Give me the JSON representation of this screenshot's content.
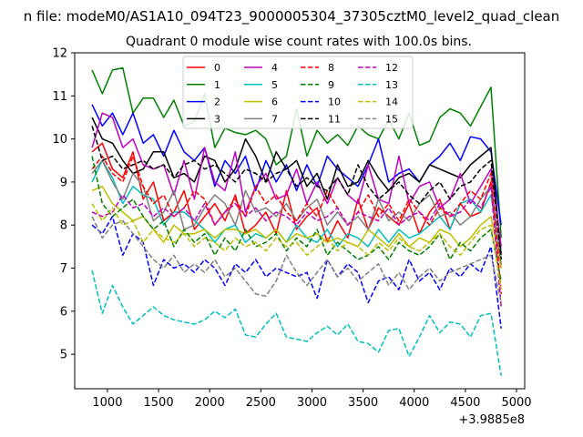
{
  "chart_data": {
    "type": "line",
    "suptitle": "n file: modeM0/AS1A10_094T23_9000005304_37305cztM0_level2_quad_clean",
    "title": "Quadrant 0 module wise count rates with 100.0s bins.",
    "xlabel": "",
    "ylabel": "",
    "offset_text": "+3.9885e8",
    "xlim": [
      680,
      5080
    ],
    "ylim": [
      4.2,
      12
    ],
    "xticks": [
      1000,
      1500,
      2000,
      2500,
      3000,
      3500,
      4000,
      4500,
      5000
    ],
    "yticks": [
      5,
      6,
      7,
      8,
      9,
      10,
      11,
      12
    ],
    "grid": false,
    "legend_position": "top-center",
    "legend_columns": 4,
    "x": [
      850,
      950,
      1050,
      1150,
      1250,
      1350,
      1450,
      1550,
      1650,
      1750,
      1850,
      1950,
      2050,
      2150,
      2250,
      2350,
      2450,
      2550,
      2650,
      2750,
      2850,
      2950,
      3050,
      3150,
      3250,
      3350,
      3450,
      3550,
      3650,
      3750,
      3850,
      3950,
      4050,
      4150,
      4250,
      4350,
      4450,
      4550,
      4650,
      4750,
      4850
    ],
    "series": [
      {
        "name": "0",
        "color": "#ff0000",
        "dash": "solid",
        "values": [
          9.7,
          9.9,
          9.3,
          9.1,
          9.7,
          8.6,
          9.0,
          8.1,
          8.3,
          8.8,
          7.9,
          8.2,
          8.5,
          8.1,
          8.7,
          7.8,
          8.0,
          8.3,
          7.8,
          8.8,
          7.9,
          8.2,
          8.4,
          7.6,
          8.1,
          7.7,
          8.6,
          7.9,
          8.4,
          8.2,
          8.0,
          8.5,
          7.8,
          8.3,
          8.6,
          7.9,
          8.5,
          8.2,
          8.3,
          9.0,
          7.0
        ]
      },
      {
        "name": "1",
        "color": "#008000",
        "dash": "solid",
        "values": [
          11.6,
          11.05,
          11.6,
          11.65,
          10.6,
          10.95,
          10.95,
          10.5,
          10.9,
          10.3,
          10.4,
          11.05,
          9.8,
          10.25,
          10.15,
          10.1,
          10.2,
          10.0,
          9.4,
          9.6,
          10.7,
          9.6,
          10.2,
          9.9,
          10.1,
          9.85,
          10.3,
          10.1,
          10.0,
          10.45,
          10.0,
          10.6,
          9.85,
          9.95,
          10.5,
          10.7,
          10.6,
          10.3,
          10.75,
          11.2,
          7.7
        ]
      },
      {
        "name": "2",
        "color": "#0000ff",
        "dash": "solid",
        "values": [
          10.8,
          10.3,
          10.6,
          10.1,
          10.6,
          9.9,
          10.1,
          9.6,
          10.2,
          9.7,
          9.5,
          9.8,
          8.9,
          9.5,
          9.2,
          9.6,
          8.8,
          9.5,
          9.0,
          9.4,
          8.8,
          9.4,
          8.9,
          9.6,
          9.3,
          9.1,
          8.9,
          9.4,
          10.0,
          9.0,
          9.2,
          9.3,
          9.0,
          9.4,
          9.6,
          9.9,
          9.5,
          10.05,
          10.0,
          9.7,
          8.0
        ]
      },
      {
        "name": "3",
        "color": "#000000",
        "dash": "solid",
        "values": [
          10.5,
          10.0,
          9.9,
          9.5,
          9.2,
          9.3,
          9.7,
          9.7,
          9.1,
          9.2,
          9.0,
          9.6,
          9.5,
          9.0,
          9.3,
          10.0,
          9.6,
          9.0,
          9.7,
          9.3,
          9.5,
          8.9,
          9.2,
          8.6,
          9.4,
          8.9,
          9.0,
          9.5,
          9.1,
          8.8,
          9.1,
          9.2,
          9.0,
          9.4,
          9.3,
          9.2,
          9.1,
          9.4,
          9.6,
          9.8,
          7.3
        ]
      },
      {
        "name": "4",
        "color": "#bf00bf",
        "dash": "solid",
        "values": [
          9.8,
          10.6,
          10.5,
          9.8,
          10.0,
          9.4,
          9.3,
          9.4,
          8.7,
          9.5,
          8.6,
          9.8,
          9.0,
          8.8,
          9.7,
          8.3,
          8.9,
          9.2,
          8.6,
          8.7,
          9.3,
          8.5,
          9.0,
          8.5,
          9.1,
          8.7,
          8.5,
          9.4,
          8.6,
          8.5,
          9.6,
          8.5,
          8.9,
          9.0,
          8.4,
          8.6,
          9.2,
          8.5,
          8.9,
          9.3,
          7.5
        ]
      },
      {
        "name": "5",
        "color": "#00bfbf",
        "dash": "solid",
        "values": [
          9.0,
          9.5,
          9.1,
          8.5,
          8.9,
          8.7,
          8.6,
          8.0,
          8.3,
          8.3,
          8.1,
          7.9,
          7.6,
          7.9,
          8.0,
          7.6,
          7.8,
          7.7,
          7.9,
          7.6,
          8.0,
          7.7,
          7.6,
          7.9,
          7.5,
          7.8,
          7.7,
          7.5,
          7.9,
          7.6,
          7.9,
          7.7,
          7.8,
          8.0,
          8.2,
          7.9,
          8.5,
          8.6,
          8.3,
          8.7,
          7.2
        ]
      },
      {
        "name": "6",
        "color": "#bfbf00",
        "dash": "solid",
        "values": [
          8.8,
          8.9,
          8.5,
          8.3,
          8.1,
          8.2,
          7.9,
          7.6,
          8.0,
          7.8,
          7.8,
          7.9,
          7.7,
          7.9,
          7.9,
          7.8,
          7.9,
          7.7,
          7.9,
          7.6,
          7.8,
          7.7,
          7.8,
          7.6,
          7.7,
          7.6,
          7.5,
          7.9,
          7.7,
          7.5,
          7.8,
          7.5,
          7.7,
          7.6,
          7.9,
          7.8,
          7.5,
          7.7,
          8.0,
          8.2,
          7.0
        ]
      },
      {
        "name": "7",
        "color": "#808080",
        "dash": "solid",
        "values": [
          9.2,
          9.5,
          9.0,
          8.6,
          9.2,
          8.9,
          8.1,
          8.3,
          8.8,
          7.9,
          8.0,
          8.4,
          8.7,
          8.5,
          8.0,
          8.8,
          8.3,
          8.4,
          8.2,
          8.5,
          8.1,
          8.4,
          8.6,
          8.0,
          8.3,
          8.0,
          8.2,
          7.9,
          8.6,
          8.1,
          8.3,
          8.1,
          8.5,
          8.7,
          8.2,
          8.3,
          8.0,
          8.2,
          8.6,
          8.9,
          7.1
        ]
      },
      {
        "name": "8",
        "color": "#ff0000",
        "dash": "dashed",
        "values": [
          9.3,
          9.6,
          9.2,
          9.0,
          9.6,
          8.9,
          8.5,
          8.7,
          8.2,
          8.4,
          8.8,
          8.6,
          8.0,
          8.3,
          8.6,
          8.2,
          8.9,
          8.5,
          8.7,
          8.3,
          8.1,
          8.5,
          8.2,
          8.8,
          8.4,
          8.0,
          8.3,
          8.7,
          8.2,
          8.5,
          8.1,
          8.6,
          8.3,
          8.0,
          8.4,
          8.2,
          8.5,
          8.8,
          8.6,
          9.2,
          6.4
        ]
      },
      {
        "name": "9",
        "color": "#008000",
        "dash": "dashed",
        "values": [
          9.6,
          8.5,
          8.2,
          8.4,
          8.6,
          8.2,
          7.9,
          8.1,
          7.5,
          7.9,
          7.6,
          7.8,
          7.3,
          7.7,
          7.4,
          7.9,
          7.5,
          7.6,
          7.8,
          7.4,
          7.7,
          7.5,
          7.9,
          7.3,
          7.6,
          7.4,
          7.2,
          7.3,
          7.5,
          7.2,
          7.6,
          7.4,
          7.3,
          7.5,
          7.8,
          7.2,
          7.6,
          7.4,
          7.7,
          7.9,
          6.7
        ]
      },
      {
        "name": "10",
        "color": "#0000ff",
        "dash": "dashed",
        "values": [
          8.0,
          7.8,
          8.2,
          7.3,
          7.8,
          7.6,
          6.6,
          7.2,
          7.0,
          7.1,
          6.9,
          7.2,
          7.0,
          6.6,
          7.1,
          6.9,
          7.2,
          6.8,
          7.0,
          6.9,
          6.8,
          6.9,
          6.3,
          7.2,
          6.8,
          7.1,
          6.9,
          6.2,
          6.7,
          6.8,
          6.5,
          7.2,
          6.7,
          6.9,
          6.5,
          7.0,
          6.8,
          7.1,
          6.9,
          7.5,
          5.6
        ]
      },
      {
        "name": "11",
        "color": "#000000",
        "dash": "dashed",
        "values": [
          10.3,
          9.5,
          9.6,
          9.3,
          9.4,
          9.5,
          9.3,
          9.4,
          9.1,
          9.4,
          9.5,
          9.3,
          9.4,
          9.2,
          9.0,
          9.3,
          9.2,
          9.0,
          9.2,
          9.3,
          8.9,
          9.1,
          8.9,
          8.8,
          9.1,
          8.7,
          9.4,
          8.9,
          8.6,
          8.8,
          9.0,
          8.7,
          8.5,
          8.8,
          9.0,
          8.6,
          8.9,
          9.0,
          9.3,
          9.5,
          7.2
        ]
      },
      {
        "name": "12",
        "color": "#bf00bf",
        "dash": "dashed",
        "values": [
          8.3,
          8.2,
          8.3,
          8.7,
          8.4,
          8.5,
          8.2,
          8.4,
          8.2,
          8.4,
          8.1,
          8.5,
          8.0,
          8.3,
          8.5,
          8.2,
          8.4,
          8.1,
          8.3,
          8.2,
          8.0,
          8.3,
          8.1,
          8.2,
          8.4,
          8.0,
          8.3,
          8.2,
          8.1,
          8.4,
          8.0,
          8.2,
          8.3,
          8.1,
          8.5,
          8.2,
          8.3,
          8.6,
          8.4,
          8.9,
          6.1
        ]
      },
      {
        "name": "13",
        "color": "#00bfbf",
        "dash": "dashed",
        "values": [
          6.95,
          5.95,
          6.6,
          6.1,
          5.7,
          5.9,
          6.1,
          5.9,
          5.8,
          5.75,
          5.7,
          5.8,
          6.0,
          5.85,
          6.05,
          5.45,
          5.4,
          5.7,
          5.95,
          5.4,
          5.35,
          5.3,
          5.5,
          5.65,
          5.45,
          5.7,
          5.3,
          5.25,
          5.05,
          5.55,
          5.6,
          4.95,
          5.4,
          5.9,
          5.5,
          5.75,
          5.7,
          5.4,
          5.9,
          5.95,
          4.5
        ]
      },
      {
        "name": "14",
        "color": "#bfbf00",
        "dash": "dashed",
        "values": [
          8.5,
          8.1,
          8.4,
          8.0,
          8.1,
          7.6,
          7.9,
          7.7,
          7.6,
          7.8,
          7.5,
          7.7,
          7.6,
          7.4,
          7.7,
          7.5,
          7.6,
          7.4,
          7.7,
          7.5,
          7.6,
          7.3,
          7.5,
          7.7,
          7.4,
          7.6,
          7.5,
          7.3,
          7.6,
          7.4,
          7.7,
          7.5,
          7.4,
          7.6,
          7.8,
          7.5,
          7.3,
          7.6,
          7.9,
          8.0,
          6.5
        ]
      },
      {
        "name": "15",
        "color": "#808080",
        "dash": "dashed",
        "values": [
          8.2,
          7.7,
          8.0,
          8.1,
          7.8,
          7.5,
          7.2,
          7.0,
          7.3,
          6.9,
          7.1,
          6.9,
          7.2,
          6.8,
          7.0,
          6.7,
          6.4,
          6.35,
          6.7,
          7.3,
          6.9,
          6.6,
          6.9,
          7.2,
          6.8,
          7.0,
          6.7,
          6.9,
          7.1,
          6.6,
          6.9,
          6.5,
          6.8,
          7.0,
          6.7,
          6.9,
          7.0,
          7.1,
          7.2,
          7.3,
          6.2
        ]
      }
    ]
  }
}
